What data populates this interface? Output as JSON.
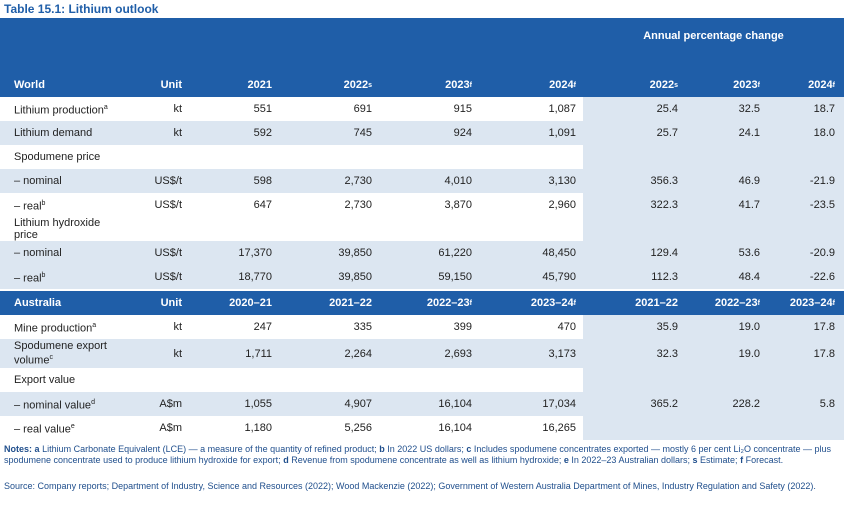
{
  "title": "Table 15.1: Lithium outlook",
  "pct_header": "Annual percentage change",
  "sections": [
    {
      "header": [
        {
          "text": "World"
        },
        {
          "text": "Unit"
        },
        {
          "text": "2021"
        },
        {
          "text": "2022",
          "sup": "s"
        },
        {
          "text": "2023",
          "sup": "f"
        },
        {
          "text": "2024",
          "sup": "f"
        },
        {
          "text": "2022",
          "sup": "s"
        },
        {
          "text": "2023",
          "sup": "f"
        },
        {
          "text": "2024",
          "sup": "f"
        }
      ],
      "rows": [
        {
          "label": "Lithium production",
          "sup": "a",
          "unit": "kt",
          "values": [
            "551",
            "691",
            "915",
            "1,087",
            "25.4",
            "32.5",
            "18.7"
          ]
        },
        {
          "label": "Lithium demand",
          "unit": "kt",
          "values": [
            "592",
            "745",
            "924",
            "1,091",
            "25.7",
            "24.1",
            "18.0"
          ]
        },
        {
          "label": "Spodumene price"
        },
        {
          "label": "– nominal",
          "unit": "US$/t",
          "values": [
            "598",
            "2,730",
            "4,010",
            "3,130",
            "356.3",
            "46.9",
            "-21.9"
          ]
        },
        {
          "label": "– real",
          "sup": "b",
          "unit": "US$/t",
          "values": [
            "647",
            "2,730",
            "3,870",
            "2,960",
            "322.3",
            "41.7",
            "-23.5"
          ]
        },
        {
          "label": "Lithium hydroxide price"
        },
        {
          "label": "– nominal",
          "unit": "US$/t",
          "values": [
            "17,370",
            "39,850",
            "61,220",
            "48,450",
            "129.4",
            "53.6",
            "-20.9"
          ]
        },
        {
          "label": "– real",
          "sup": "b",
          "unit": "US$/t",
          "values": [
            "18,770",
            "39,850",
            "59,150",
            "45,790",
            "112.3",
            "48.4",
            "-22.6"
          ]
        }
      ]
    },
    {
      "header": [
        {
          "text": "Australia"
        },
        {
          "text": "Unit"
        },
        {
          "text": "2020–21"
        },
        {
          "text": "2021–22"
        },
        {
          "text": "2022–23",
          "sup": "f"
        },
        {
          "text": "2023–24",
          "sup": "f"
        },
        {
          "text": "2021–22"
        },
        {
          "text": "2022–23",
          "sup": "f"
        },
        {
          "text": "2023–24",
          "sup": "f"
        }
      ],
      "rows": [
        {
          "label": "Mine production",
          "sup": "a",
          "unit": "kt",
          "values": [
            "247",
            "335",
            "399",
            "470",
            "35.9",
            "19.0",
            "17.8"
          ]
        },
        {
          "label": "Spodumene export volume",
          "sup": "c",
          "unit": "kt",
          "values": [
            "1,711",
            "2,264",
            "2,693",
            "3,173",
            "32.3",
            "19.0",
            "17.8"
          ]
        },
        {
          "label": "Export value"
        },
        {
          "label": "– nominal value",
          "sup": "d",
          "unit": "A$m",
          "values": [
            "1,055",
            "4,907",
            "16,104",
            "17,034",
            "365.2",
            "228.2",
            "5.8"
          ]
        },
        {
          "label": "– real value",
          "sup": "e",
          "unit": "A$m",
          "values": [
            "1,180",
            "5,256",
            "16,104",
            "16,265"
          ]
        }
      ]
    }
  ],
  "notes": {
    "label": "Notes:",
    "items": [
      {
        "key": "a",
        "text": "Lithium Carbonate Equivalent (LCE) — a measure of the quantity of refined product;"
      },
      {
        "key": "b",
        "text": "In 2022 US dollars;"
      },
      {
        "key": "c",
        "text": "Includes spodumene concentrates exported — mostly 6 per cent Li₂O concentrate — plus spodumene concentrate used to produce lithium hydroxide for export;"
      },
      {
        "key": "d",
        "text": "Revenue from spodumene concentrate as well as lithium hydroxide;"
      },
      {
        "key": "e",
        "text": "In 2022–23 Australian dollars;"
      },
      {
        "key": "s",
        "text": "Estimate;"
      },
      {
        "key": "f",
        "text": "Forecast."
      }
    ]
  },
  "source": {
    "label": "Source:",
    "text": "Company reports; Department of Industry, Science and Resources (2022); Wood Mackenzie (2022); Government of Western Australia Department of Mines, Industry Regulation and Safety (2022)."
  }
}
